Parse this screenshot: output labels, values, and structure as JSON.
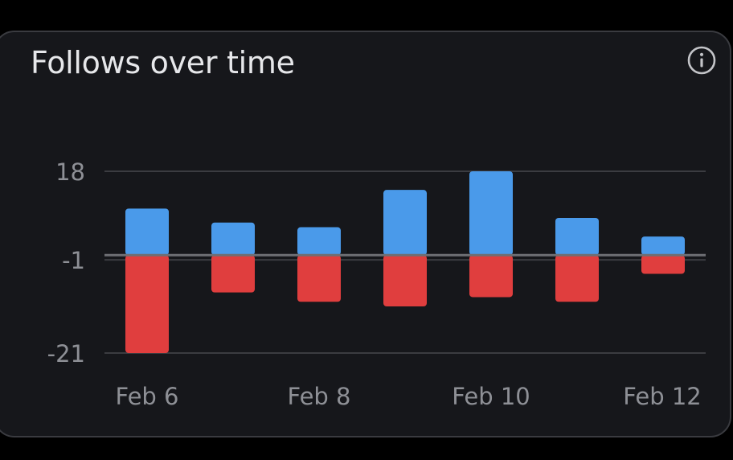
{
  "card": {
    "title": "Follows over time"
  },
  "icons": {
    "info": "info-circle-icon"
  },
  "colors": {
    "gained": "#4a9aea",
    "lost": "#e03e3e",
    "gridline": "#3b3c41",
    "baseline": "#6e6f74",
    "label": "#8e9096",
    "title": "#e6e7ea",
    "card_background": "#16171b"
  },
  "chart_data": {
    "type": "bar",
    "stacked": true,
    "categories": [
      "Feb 6",
      "Feb 7",
      "Feb 8",
      "Feb 9",
      "Feb 10",
      "Feb 11",
      "Feb 12"
    ],
    "x_tick_labels": [
      "Feb 6",
      "Feb 8",
      "Feb 10",
      "Feb 12"
    ],
    "series": [
      {
        "values": [
          10,
          7,
          6,
          14,
          18,
          8,
          4
        ]
      },
      {
        "values": [
          -21,
          -8,
          -10,
          -11,
          -9,
          -10,
          -4
        ]
      }
    ],
    "y_ticks": [
      18,
      -1,
      -21
    ],
    "baseline": 0,
    "ylim": [
      -21,
      18
    ],
    "grid": true,
    "legend": "none"
  }
}
